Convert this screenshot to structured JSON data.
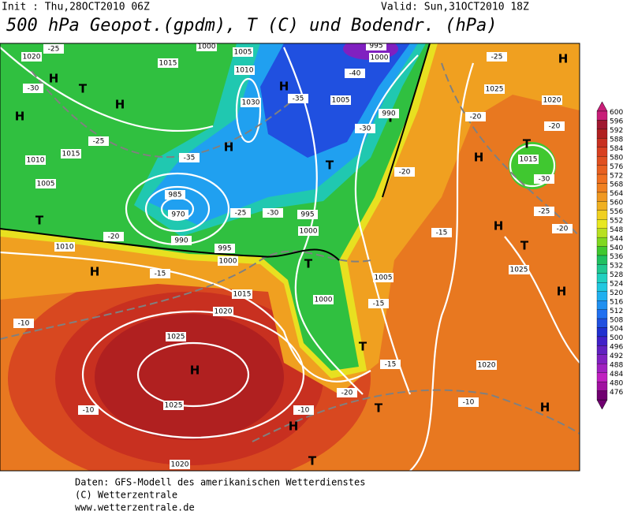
{
  "header": {
    "init": "Init : Thu,28OCT2010 06Z",
    "valid": "Valid: Sun,31OCT2010 18Z",
    "title": "500 hPa Geopot.(gpdm), T (C) und Bodendr. (hPa)"
  },
  "colorbar": {
    "ticks": [
      600,
      596,
      592,
      588,
      584,
      580,
      576,
      572,
      568,
      564,
      560,
      556,
      552,
      548,
      544,
      540,
      536,
      532,
      528,
      524,
      520,
      516,
      512,
      508,
      504,
      500,
      496,
      492,
      488,
      484,
      480,
      476
    ],
    "colors": [
      "#c81e78",
      "#a01830",
      "#b02020",
      "#c83020",
      "#d84020",
      "#e05020",
      "#e86020",
      "#f07020",
      "#f08020",
      "#f09820",
      "#f0b020",
      "#f0d020",
      "#e8e820",
      "#b8e020",
      "#80d820",
      "#40c830",
      "#20c060",
      "#20c890",
      "#20d0c0",
      "#20c8e0",
      "#20b0f0",
      "#2090f0",
      "#2070f0",
      "#2050e0",
      "#2030d0",
      "#4020c8",
      "#6020c0",
      "#8020c0",
      "#a020c0",
      "#c020c0",
      "#a010a0",
      "#700070"
    ]
  },
  "map_labels": [
    "H",
    "H",
    "H",
    "H",
    "H",
    "H",
    "H",
    "H",
    "H",
    "H",
    "H",
    "H",
    "H",
    "T",
    "T",
    "T",
    "T",
    "T",
    "T",
    "T",
    "T",
    "T",
    "T",
    "1020",
    "1015",
    "1000",
    "1005",
    "995",
    "1000",
    "1010",
    "1030",
    "1005",
    "990",
    "985",
    "970",
    "990",
    "995",
    "1000",
    "1010",
    "1005",
    "1010",
    "1015",
    "1025",
    "1025",
    "1020",
    "1020",
    "1015",
    "1000",
    "1005",
    "1025",
    "1020",
    "1025",
    "1020",
    "1015",
    "995",
    "1000",
    "-25",
    "-30",
    "-25",
    "-35",
    "-30",
    "-40",
    "-35",
    "-20",
    "-15",
    "-10",
    "-10",
    "-10",
    "-10",
    "-15",
    "-20",
    "-15",
    "-20",
    "-25",
    "-20",
    "-20",
    "-25",
    "-30",
    "-20",
    "-15",
    "-25",
    "-30"
  ],
  "footer": [
    "Daten: GFS-Modell des amerikanischen Wetterdienstes",
    "(C) Wetterzentrale",
    "www.wetterzentrale.de"
  ]
}
